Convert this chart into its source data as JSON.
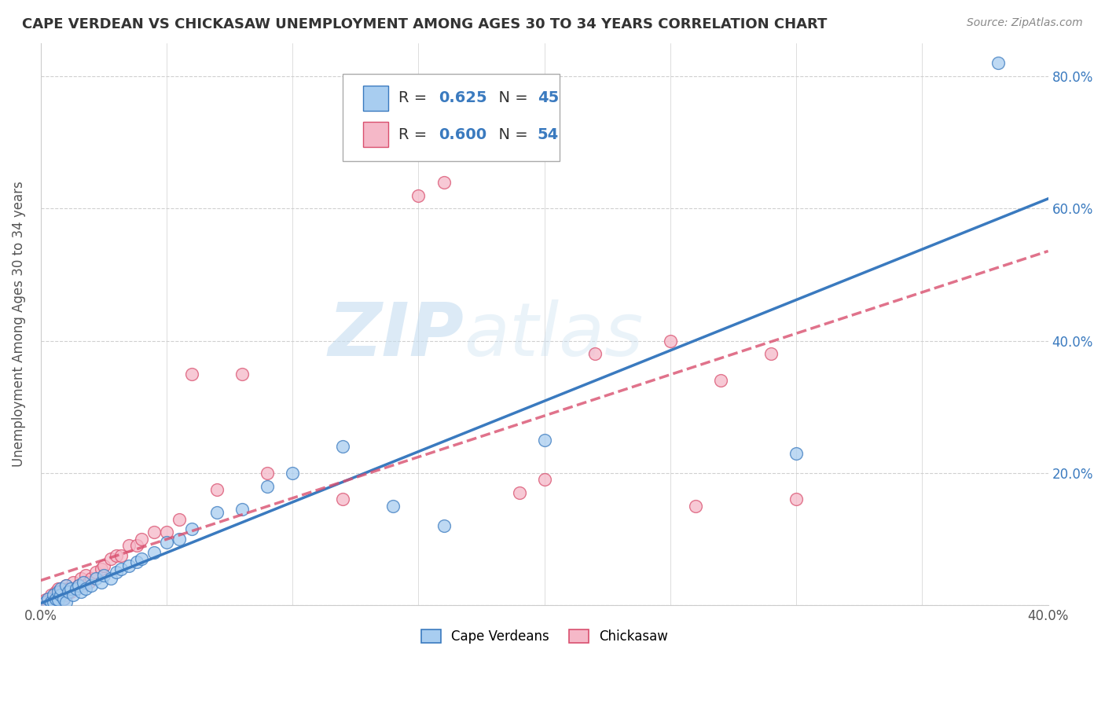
{
  "title": "CAPE VERDEAN VS CHICKASAW UNEMPLOYMENT AMONG AGES 30 TO 34 YEARS CORRELATION CHART",
  "source": "Source: ZipAtlas.com",
  "ylabel": "Unemployment Among Ages 30 to 34 years",
  "xlim": [
    0.0,
    0.4
  ],
  "ylim": [
    0.0,
    0.85
  ],
  "yticks": [
    0.0,
    0.2,
    0.4,
    0.6,
    0.8
  ],
  "ytick_labels": [
    "",
    "20.0%",
    "40.0%",
    "60.0%",
    "80.0%"
  ],
  "xtick_labels": [
    "0.0%",
    "",
    "",
    "",
    "",
    "",
    "",
    "",
    "40.0%"
  ],
  "cape_verdean_color": "#a8cdf0",
  "chickasaw_color": "#f5b8c8",
  "cape_verdean_line_color": "#3a7abf",
  "chickasaw_line_color": "#d94f6e",
  "R_cape": 0.625,
  "N_cape": 45,
  "R_chickasaw": 0.6,
  "N_chickasaw": 54,
  "watermark_zip": "ZIP",
  "watermark_atlas": "atlas",
  "background_color": "#ffffff",
  "grid_color": "#d0d0d0",
  "cape_verdean_x": [
    0.002,
    0.003,
    0.004,
    0.005,
    0.005,
    0.006,
    0.007,
    0.007,
    0.008,
    0.008,
    0.009,
    0.01,
    0.01,
    0.011,
    0.012,
    0.013,
    0.014,
    0.015,
    0.016,
    0.017,
    0.018,
    0.02,
    0.022,
    0.024,
    0.025,
    0.028,
    0.03,
    0.032,
    0.035,
    0.038,
    0.04,
    0.045,
    0.05,
    0.055,
    0.06,
    0.07,
    0.08,
    0.09,
    0.1,
    0.12,
    0.14,
    0.16,
    0.2,
    0.3,
    0.38
  ],
  "cape_verdean_y": [
    0.005,
    0.01,
    0.005,
    0.015,
    0.005,
    0.01,
    0.008,
    0.02,
    0.015,
    0.025,
    0.01,
    0.03,
    0.005,
    0.02,
    0.025,
    0.015,
    0.025,
    0.03,
    0.02,
    0.035,
    0.025,
    0.03,
    0.04,
    0.035,
    0.045,
    0.04,
    0.05,
    0.055,
    0.06,
    0.065,
    0.07,
    0.08,
    0.095,
    0.1,
    0.115,
    0.14,
    0.145,
    0.18,
    0.2,
    0.24,
    0.15,
    0.12,
    0.25,
    0.23,
    0.82
  ],
  "chickasaw_x": [
    0.001,
    0.002,
    0.003,
    0.004,
    0.004,
    0.005,
    0.005,
    0.006,
    0.006,
    0.007,
    0.007,
    0.008,
    0.008,
    0.009,
    0.009,
    0.01,
    0.01,
    0.011,
    0.012,
    0.013,
    0.014,
    0.015,
    0.016,
    0.017,
    0.018,
    0.019,
    0.02,
    0.022,
    0.024,
    0.025,
    0.028,
    0.03,
    0.032,
    0.035,
    0.038,
    0.04,
    0.045,
    0.05,
    0.055,
    0.06,
    0.07,
    0.08,
    0.09,
    0.12,
    0.15,
    0.16,
    0.19,
    0.2,
    0.22,
    0.25,
    0.26,
    0.27,
    0.29,
    0.3
  ],
  "chickasaw_y": [
    0.005,
    0.008,
    0.005,
    0.01,
    0.015,
    0.005,
    0.012,
    0.01,
    0.02,
    0.008,
    0.025,
    0.015,
    0.02,
    0.025,
    0.01,
    0.03,
    0.015,
    0.025,
    0.02,
    0.035,
    0.025,
    0.03,
    0.04,
    0.03,
    0.045,
    0.035,
    0.04,
    0.05,
    0.055,
    0.06,
    0.07,
    0.075,
    0.075,
    0.09,
    0.09,
    0.1,
    0.11,
    0.11,
    0.13,
    0.35,
    0.175,
    0.35,
    0.2,
    0.16,
    0.62,
    0.64,
    0.17,
    0.19,
    0.38,
    0.4,
    0.15,
    0.34,
    0.38,
    0.16
  ]
}
